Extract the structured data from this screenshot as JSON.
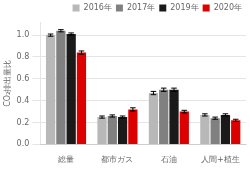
{
  "chart_data": {
    "type": "bar",
    "categories": [
      "総量",
      "都市ガス",
      "石油",
      "人間+植生"
    ],
    "series": [
      {
        "name": "2016年",
        "color": "#b8b8b8",
        "values": [
          1.0,
          0.25,
          0.47,
          0.27
        ],
        "errors": [
          0.01,
          0.01,
          0.015,
          0.01
        ]
      },
      {
        "name": "2017年",
        "color": "#808080",
        "values": [
          1.04,
          0.26,
          0.5,
          0.24
        ],
        "errors": [
          0.01,
          0.01,
          0.015,
          0.01
        ]
      },
      {
        "name": "2019年",
        "color": "#1a1a1a",
        "values": [
          1.01,
          0.25,
          0.5,
          0.27
        ],
        "errors": [
          0.01,
          0.01,
          0.015,
          0.01
        ]
      },
      {
        "name": "2020年",
        "color": "#dd0000",
        "values": [
          0.84,
          0.32,
          0.3,
          0.22
        ],
        "errors": [
          0.015,
          0.015,
          0.012,
          0.01
        ]
      }
    ],
    "ylabel": "CO₂排出量比",
    "ylim": [
      0.0,
      1.12
    ],
    "yticks": [
      {
        "value": 0.0,
        "label": "0.0"
      },
      0.2,
      0.4,
      0.6,
      0.8,
      {
        "value": 1.0,
        "label": "1.0"
      }
    ],
    "grid": true,
    "legend": "upper right"
  }
}
